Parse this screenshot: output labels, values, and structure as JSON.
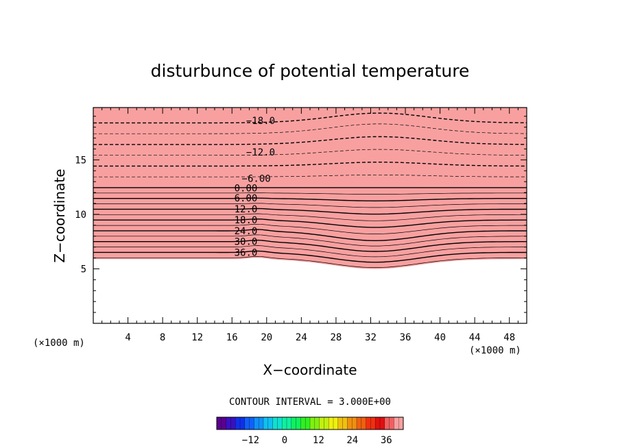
{
  "chart_data": {
    "type": "contour",
    "title": "disturbunce of potential temperature",
    "xlabel": "X−coordinate",
    "ylabel": "Z−coordinate",
    "x_unit_label": "(×1000 m)",
    "y_unit_label": "(×1000 m)",
    "xlim": [
      0,
      50
    ],
    "ylim": [
      0,
      19.8
    ],
    "x_ticks": [
      4,
      8,
      12,
      16,
      20,
      24,
      28,
      32,
      36,
      40,
      44,
      48
    ],
    "x_tick_labels": [
      "4",
      "8",
      "12",
      "16",
      "20",
      "24",
      "28",
      "32",
      "36",
      "40",
      "44",
      "48"
    ],
    "y_ticks": [
      5,
      10,
      15
    ],
    "y_tick_labels": [
      "5",
      "10",
      "15"
    ],
    "contour_interval_label": "CONTOUR INTERVAL = 3.000E+00",
    "contour_labels": [
      {
        "text": "−18.0",
        "x": 19.3,
        "z": 18.6
      },
      {
        "text": "−12.0",
        "x": 19.3,
        "z": 15.7
      },
      {
        "text": "−6.00",
        "x": 18.8,
        "z": 13.3
      },
      {
        "text": "0.00",
        "x": 17.6,
        "z": 12.4
      },
      {
        "text": "6.00",
        "x": 17.6,
        "z": 11.5
      },
      {
        "text": "12.0",
        "x": 17.6,
        "z": 10.5
      },
      {
        "text": "18.0",
        "x": 17.6,
        "z": 9.5
      },
      {
        "text": "24.0",
        "x": 17.6,
        "z": 8.5
      },
      {
        "text": "30.0",
        "x": 17.6,
        "z": 7.5
      },
      {
        "text": "36.0",
        "x": 17.6,
        "z": 6.5
      }
    ],
    "colorbar": {
      "range": [
        -24,
        42
      ],
      "ticks": [
        -12,
        0,
        12,
        24,
        36
      ],
      "tick_labels": [
        "−12",
        "0",
        "12",
        "24",
        "36"
      ],
      "colors": [
        "#5a0090",
        "#3a10c0",
        "#1030e8",
        "#1060f8",
        "#1090f8",
        "#10c0f0",
        "#10e0d0",
        "#10f0a0",
        "#10f060",
        "#30f020",
        "#80f010",
        "#c0f010",
        "#f0f010",
        "#f0c010",
        "#f09010",
        "#f06010",
        "#f03010",
        "#e01010",
        "#f06060",
        "#f8a0a0"
      ]
    },
    "grid": false
  }
}
